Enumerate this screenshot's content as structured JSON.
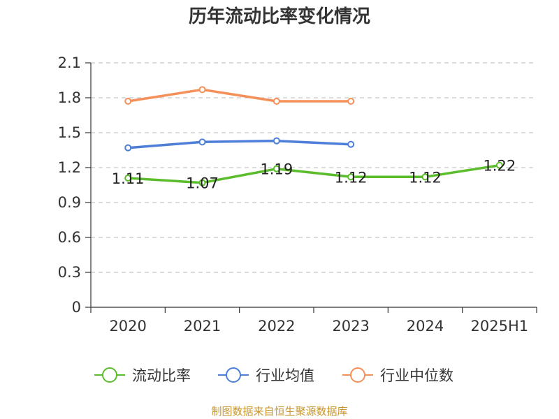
{
  "chart_data": {
    "type": "line",
    "title": "历年流动比率变化情况",
    "categories": [
      "2020",
      "2021",
      "2022",
      "2023",
      "2024",
      "2025H1"
    ],
    "ylim": [
      0,
      2.1
    ],
    "yticks": [
      "0",
      "0.3",
      "0.6",
      "0.9",
      "1.2",
      "1.5",
      "1.8",
      "2.1"
    ],
    "grid": true,
    "legend_position": "bottom",
    "series": [
      {
        "name": "流动比率",
        "color": "#5bbd2b",
        "values": [
          1.11,
          1.07,
          1.19,
          1.12,
          1.12,
          1.22
        ],
        "labels": [
          "1.11",
          "1.07",
          "1.19",
          "1.12",
          "1.12",
          "1.22"
        ]
      },
      {
        "name": "行业均值",
        "color": "#4d7ed8",
        "values": [
          1.37,
          1.42,
          1.43,
          1.4,
          null,
          null
        ]
      },
      {
        "name": "行业中位数",
        "color": "#f5905a",
        "values": [
          1.77,
          1.87,
          1.77,
          1.77,
          null,
          null
        ]
      }
    ]
  },
  "source_text": "制图数据来自恒生聚源数据库"
}
